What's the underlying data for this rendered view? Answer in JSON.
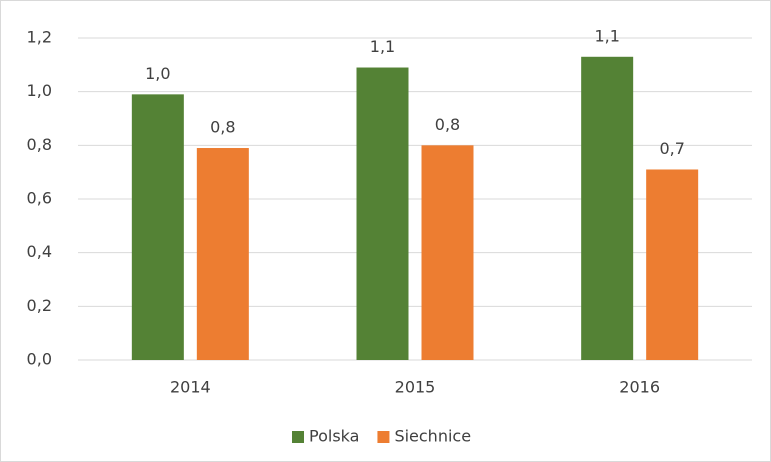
{
  "chart_data": {
    "type": "bar",
    "categories": [
      "2014",
      "2015",
      "2016"
    ],
    "series": [
      {
        "name": "Polska",
        "color": "#548235",
        "values": [
          0.99,
          1.09,
          1.13
        ],
        "value_labels": [
          "1,0",
          "1,1",
          "1,1"
        ]
      },
      {
        "name": "Siechnice",
        "color": "#ed7d31",
        "values": [
          0.79,
          0.8,
          0.71
        ],
        "value_labels": [
          "0,8",
          "0,8",
          "0,7"
        ]
      }
    ],
    "ylim": [
      0,
      1.2
    ],
    "yticks": [
      {
        "value": 0,
        "label": "0,0"
      },
      {
        "value": 0.2,
        "label": "0,2"
      },
      {
        "value": 0.4,
        "label": "0,4"
      },
      {
        "value": 0.6,
        "label": "0,6"
      },
      {
        "value": 0.8,
        "label": "0,8"
      },
      {
        "value": 1.0,
        "label": "1,0"
      },
      {
        "value": 1.2,
        "label": "1,2"
      }
    ],
    "grid": true,
    "legend": "bottom"
  }
}
